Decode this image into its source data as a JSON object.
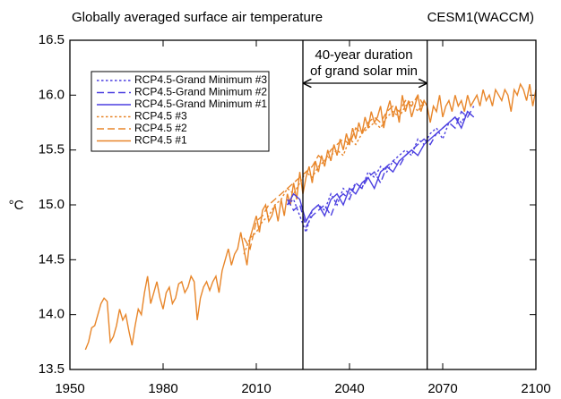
{
  "chart_data": {
    "type": "line",
    "title": "Globally averaged surface air temperature",
    "subtitle": "CESM1(WACCM)",
    "y_label": "°C",
    "annotations": [
      "40-year duration",
      "of grand solar min"
    ],
    "vlines": [
      2025,
      2065
    ],
    "xlim": [
      1950,
      2100
    ],
    "xticks": [
      1950,
      1980,
      2010,
      2040,
      2070,
      2100
    ],
    "ylim": [
      13.5,
      16.5
    ],
    "yticks": [
      13.5,
      {
        "value": 14,
        "label": "14.0"
      },
      14.5,
      {
        "value": 15,
        "label": "15.0"
      },
      15.5,
      {
        "value": 16,
        "label": "16.0"
      },
      16.5
    ],
    "series": [
      {
        "name": "RCP4.5-Grand Minimum #3",
        "color": "#4b3fe0",
        "dash": "dotted",
        "x": [
          2020,
          2022,
          2024,
          2026,
          2028,
          2030,
          2032,
          2034,
          2036,
          2038,
          2040,
          2042,
          2044,
          2046,
          2048,
          2050,
          2052,
          2054,
          2056,
          2058,
          2060,
          2062,
          2064,
          2066,
          2068,
          2070,
          2072,
          2074,
          2076,
          2078,
          2080
        ],
        "values": [
          15.0,
          15.05,
          14.9,
          14.75,
          14.95,
          15.0,
          14.95,
          15.1,
          15.0,
          15.15,
          15.1,
          15.2,
          15.15,
          15.3,
          15.25,
          15.35,
          15.3,
          15.4,
          15.45,
          15.5,
          15.45,
          15.6,
          15.55,
          15.65,
          15.7,
          15.6,
          15.75,
          15.8,
          15.75,
          15.85,
          15.8
        ]
      },
      {
        "name": "RCP4.5-Grand Minimum #2",
        "color": "#4b3fe0",
        "dash": "dashed",
        "x": [
          2020,
          2022,
          2024,
          2026,
          2028,
          2030,
          2032,
          2034,
          2036,
          2038,
          2040,
          2042,
          2044,
          2046,
          2048,
          2050,
          2052,
          2054,
          2056,
          2058,
          2060,
          2062,
          2064,
          2066,
          2068,
          2070,
          2072,
          2074,
          2076,
          2078,
          2080
        ],
        "values": [
          15.05,
          14.95,
          15.0,
          14.8,
          14.9,
          14.95,
          15.0,
          14.9,
          15.05,
          15.1,
          15.05,
          15.2,
          15.15,
          15.25,
          15.3,
          15.2,
          15.35,
          15.4,
          15.35,
          15.45,
          15.5,
          15.55,
          15.6,
          15.55,
          15.65,
          15.7,
          15.75,
          15.7,
          15.85,
          15.8,
          15.9
        ]
      },
      {
        "name": "RCP4.5-Grand Minimum #1",
        "color": "#4b3fe0",
        "dash": "solid",
        "x": [
          2020,
          2022,
          2024,
          2026,
          2028,
          2030,
          2032,
          2034,
          2036,
          2038,
          2040,
          2042,
          2044,
          2046,
          2048,
          2050,
          2052,
          2054,
          2056,
          2058,
          2060,
          2062,
          2064,
          2066,
          2068,
          2070,
          2072,
          2074,
          2076,
          2078,
          2080
        ],
        "values": [
          15.0,
          15.1,
          15.05,
          14.85,
          14.95,
          15.0,
          14.9,
          15.05,
          15.1,
          15.0,
          15.15,
          15.1,
          15.2,
          15.25,
          15.15,
          15.3,
          15.35,
          15.3,
          15.4,
          15.45,
          15.5,
          15.45,
          15.55,
          15.6,
          15.65,
          15.7,
          15.75,
          15.8,
          15.7,
          15.85,
          15.8
        ]
      },
      {
        "name": "RCP4.5 #3",
        "color": "#e8862a",
        "dash": "dotted",
        "x": [
          2006,
          2008,
          2010,
          2012,
          2014,
          2016,
          2018,
          2020,
          2022,
          2024,
          2026,
          2028,
          2030,
          2032,
          2034,
          2036,
          2038,
          2040,
          2042,
          2044,
          2046,
          2048,
          2050,
          2052,
          2054,
          2056,
          2058,
          2060,
          2062,
          2064
        ],
        "values": [
          14.55,
          14.7,
          14.75,
          14.85,
          14.9,
          15.0,
          15.05,
          15.15,
          15.1,
          15.2,
          15.3,
          15.25,
          15.35,
          15.4,
          15.45,
          15.5,
          15.45,
          15.6,
          15.55,
          15.65,
          15.7,
          15.75,
          15.7,
          15.8,
          15.85,
          15.8,
          15.9,
          15.95,
          15.85,
          15.95
        ]
      },
      {
        "name": "RCP4.5 #2",
        "color": "#e8862a",
        "dash": "dashed",
        "x": [
          2006,
          2008,
          2010,
          2012,
          2014,
          2016,
          2018,
          2020,
          2022,
          2024,
          2026,
          2028,
          2030,
          2032,
          2034,
          2036,
          2038,
          2040,
          2042,
          2044,
          2046,
          2048,
          2050,
          2052,
          2054,
          2056,
          2058,
          2060,
          2062,
          2064
        ],
        "values": [
          14.7,
          14.6,
          14.85,
          14.9,
          15.0,
          15.05,
          15.1,
          15.15,
          15.2,
          15.25,
          15.3,
          15.35,
          15.45,
          15.4,
          15.5,
          15.55,
          15.6,
          15.55,
          15.7,
          15.65,
          15.75,
          15.8,
          15.75,
          15.85,
          15.9,
          15.85,
          15.95,
          15.9,
          16.0,
          15.9
        ]
      },
      {
        "name": "RCP4.5 #1",
        "color": "#e8862a",
        "dash": "solid",
        "x": [
          1955,
          1956,
          1957,
          1958,
          1959,
          1960,
          1961,
          1962,
          1963,
          1964,
          1965,
          1966,
          1967,
          1968,
          1969,
          1970,
          1971,
          1972,
          1973,
          1974,
          1975,
          1976,
          1977,
          1978,
          1979,
          1980,
          1981,
          1982,
          1983,
          1984,
          1985,
          1986,
          1987,
          1988,
          1989,
          1990,
          1991,
          1992,
          1993,
          1994,
          1995,
          1996,
          1997,
          1998,
          1999,
          2000,
          2001,
          2002,
          2003,
          2004,
          2005,
          2006,
          2007,
          2008,
          2009,
          2010,
          2011,
          2012,
          2013,
          2014,
          2015,
          2016,
          2017,
          2018,
          2019,
          2020,
          2021,
          2022,
          2023,
          2024,
          2025,
          2026,
          2027,
          2028,
          2029,
          2030,
          2031,
          2032,
          2033,
          2034,
          2035,
          2036,
          2037,
          2038,
          2039,
          2040,
          2041,
          2042,
          2043,
          2044,
          2045,
          2046,
          2047,
          2048,
          2049,
          2050,
          2051,
          2052,
          2053,
          2054,
          2055,
          2056,
          2057,
          2058,
          2059,
          2060,
          2061,
          2062,
          2063,
          2064,
          2065,
          2066,
          2067,
          2068,
          2069,
          2070,
          2071,
          2072,
          2073,
          2074,
          2075,
          2076,
          2077,
          2078,
          2079,
          2080,
          2081,
          2082,
          2083,
          2084,
          2085,
          2086,
          2087,
          2088,
          2089,
          2090,
          2091,
          2092,
          2093,
          2094,
          2095,
          2096,
          2097,
          2098,
          2099,
          2100
        ],
        "values": [
          13.68,
          13.75,
          13.88,
          13.9,
          14.0,
          14.1,
          14.15,
          14.12,
          13.75,
          13.8,
          13.9,
          14.05,
          13.95,
          14.0,
          13.85,
          13.72,
          13.9,
          14.05,
          14.0,
          14.2,
          14.35,
          14.1,
          14.2,
          14.3,
          14.15,
          14.05,
          14.2,
          14.25,
          14.1,
          14.15,
          14.28,
          14.3,
          14.2,
          14.25,
          14.35,
          14.3,
          13.95,
          14.15,
          14.25,
          14.3,
          14.22,
          14.3,
          14.35,
          14.2,
          14.4,
          14.5,
          14.6,
          14.45,
          14.55,
          14.6,
          14.75,
          14.6,
          14.45,
          14.7,
          14.8,
          14.9,
          14.75,
          14.95,
          15.0,
          14.85,
          14.9,
          15.0,
          14.85,
          15.05,
          14.9,
          15.1,
          15.0,
          15.2,
          15.05,
          15.3,
          15.1,
          15.25,
          15.35,
          15.2,
          15.4,
          15.3,
          15.45,
          15.35,
          15.5,
          15.4,
          15.55,
          15.45,
          15.6,
          15.5,
          15.65,
          15.55,
          15.7,
          15.6,
          15.75,
          15.65,
          15.8,
          15.7,
          15.85,
          15.75,
          15.8,
          15.9,
          15.7,
          15.85,
          15.95,
          15.8,
          15.9,
          15.75,
          16.0,
          15.85,
          15.95,
          15.8,
          15.9,
          16.0,
          15.85,
          15.95,
          15.9,
          15.75,
          15.9,
          15.85,
          16.0,
          15.8,
          15.9,
          15.95,
          15.85,
          16.0,
          15.9,
          15.95,
          15.85,
          16.0,
          15.9,
          15.95,
          16.0,
          15.9,
          16.05,
          15.95,
          16.0,
          15.9,
          16.05,
          16.0,
          15.95,
          16.05,
          16.0,
          15.85,
          16.05,
          16.0,
          16.1,
          16.05,
          15.95,
          16.1,
          15.9,
          16.05
        ]
      }
    ]
  }
}
